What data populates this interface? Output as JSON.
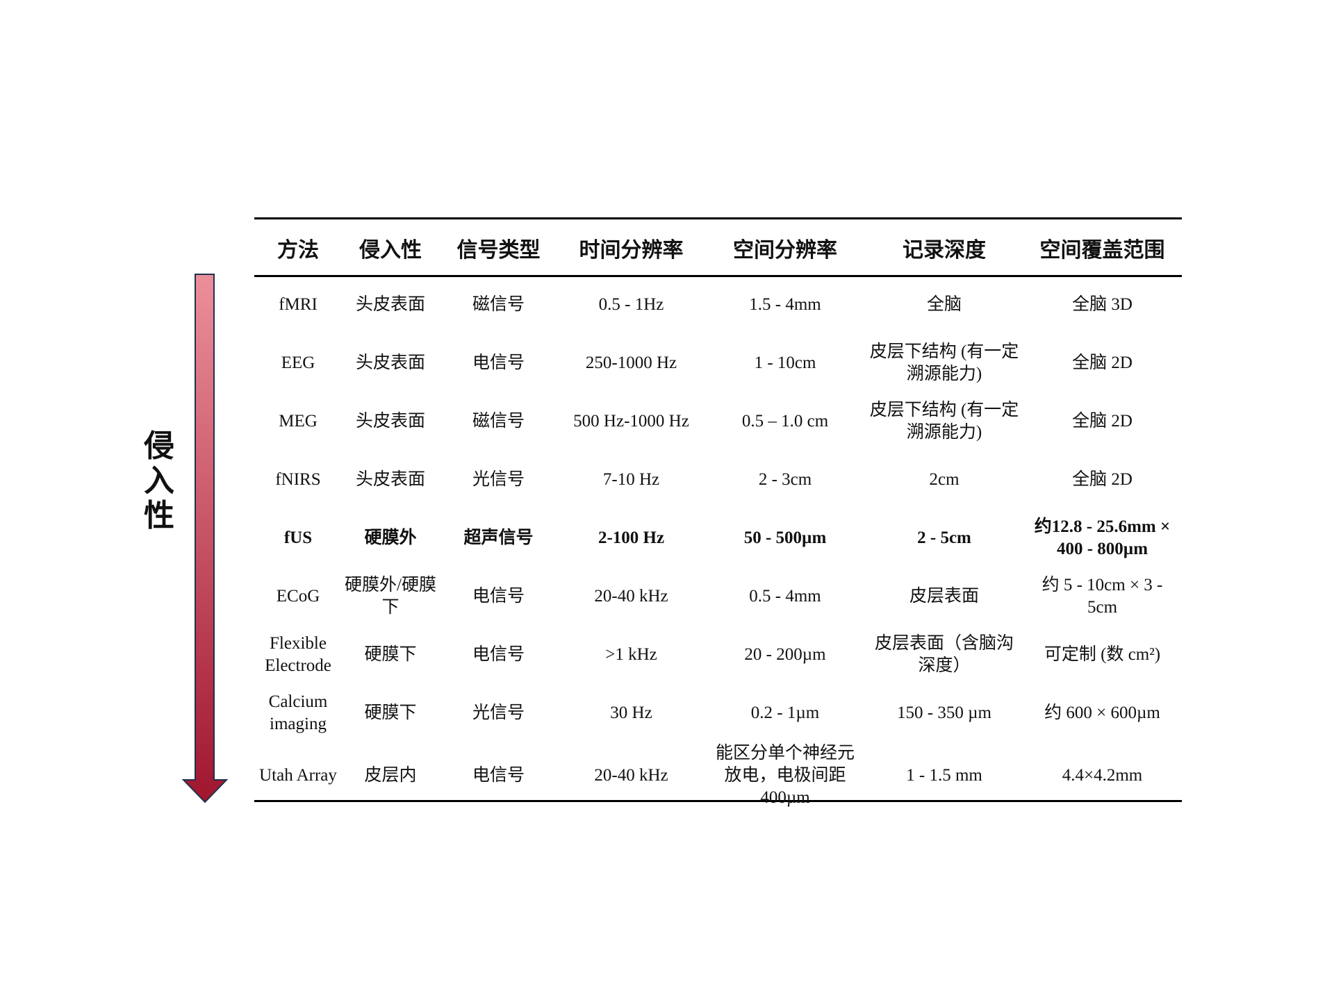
{
  "side_label": "侵入性",
  "arrow_colors": {
    "top": "#ec8f9a",
    "bottom": "#a0162e",
    "outline": "#1f3050"
  },
  "table": {
    "headers": [
      "方法",
      "侵入性",
      "信号类型",
      "时间分辨率",
      "空间分辨率",
      "记录深度",
      "空间覆盖范围"
    ],
    "rows": [
      {
        "bold": false,
        "cells": [
          "fMRI",
          "头皮表面",
          "磁信号",
          "0.5 - 1Hz",
          "1.5 - 4mm",
          "全脑",
          "全脑 3D"
        ]
      },
      {
        "bold": false,
        "cells": [
          "EEG",
          "头皮表面",
          "电信号",
          "250-1000 Hz",
          "1 - 10cm",
          "皮层下结构 (有一定溯源能力)",
          "全脑 2D"
        ]
      },
      {
        "bold": false,
        "cells": [
          "MEG",
          "头皮表面",
          "磁信号",
          "500 Hz-1000 Hz",
          "0.5 – 1.0 cm",
          "皮层下结构 (有一定溯源能力)",
          "全脑 2D"
        ]
      },
      {
        "bold": false,
        "cells": [
          "fNIRS",
          "头皮表面",
          "光信号",
          "7-10 Hz",
          "2 - 3cm",
          "2cm",
          "全脑 2D"
        ]
      },
      {
        "bold": true,
        "cells": [
          "fUS",
          "硬膜外",
          "超声信号",
          "2-100 Hz",
          "50 - 500µm",
          "2 - 5cm",
          "约12.8 - 25.6mm × 400 - 800µm"
        ]
      },
      {
        "bold": false,
        "cells": [
          "ECoG",
          "硬膜外/硬膜下",
          "电信号",
          "20-40 kHz",
          "0.5 - 4mm",
          "皮层表面",
          "约 5 - 10cm × 3 - 5cm"
        ]
      },
      {
        "bold": false,
        "cells": [
          "Flexible Electrode",
          "硬膜下",
          "电信号",
          ">1 kHz",
          "20 - 200µm",
          "皮层表面（含脑沟深度）",
          "可定制 (数 cm²)"
        ]
      },
      {
        "bold": false,
        "cells": [
          "Calcium imaging",
          "硬膜下",
          "光信号",
          "30 Hz",
          "0.2 - 1µm",
          "150 - 350 µm",
          "约 600 × 600µm"
        ]
      },
      {
        "bold": false,
        "cells": [
          "Utah Array",
          "皮层内",
          "电信号",
          "20-40 kHz",
          "能区分单个神经元放电，电极间距400µm",
          "1 - 1.5 mm",
          "4.4×4.2mm"
        ]
      }
    ]
  }
}
